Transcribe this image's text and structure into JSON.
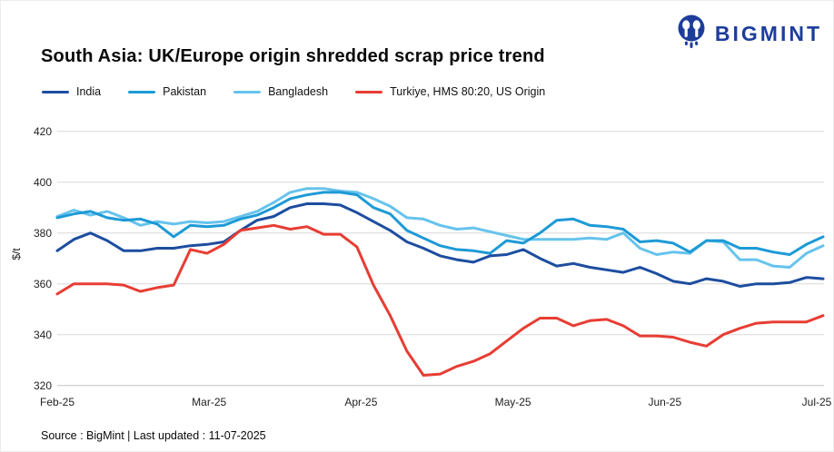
{
  "header": {
    "logo_text": "BIGMINT"
  },
  "footer": {
    "source_line": "Source : BigMint | Last updated : 11-07-2025"
  },
  "colors": {
    "brand_navy": "#1e3d9b",
    "grid": "#d9d9d9",
    "axis_baseline": "#c2c2c2",
    "text": "#111111"
  },
  "chart_data": {
    "type": "line",
    "title": "South Asia: UK/Europe origin shredded scrap price trend",
    "ylabel": "$/t",
    "ylim": [
      320,
      430
    ],
    "yticks": [
      320,
      340,
      360,
      380,
      400,
      420
    ],
    "xticklabels": [
      "Feb-25",
      "Mar-25",
      "Apr-25",
      "May-25",
      "Jun-25",
      "Jul-25"
    ],
    "grid": true,
    "legend_position": "top",
    "x_months": [
      0,
      0.11,
      0.219,
      0.329,
      0.438,
      0.548,
      0.658,
      0.767,
      0.877,
      0.986,
      1.096,
      1.206,
      1.315,
      1.425,
      1.534,
      1.644,
      1.754,
      1.863,
      1.973,
      2.082,
      2.192,
      2.302,
      2.411,
      2.521,
      2.63,
      2.74,
      2.85,
      2.959,
      3.069,
      3.178,
      3.288,
      3.398,
      3.507,
      3.617,
      3.726,
      3.836,
      3.946,
      4.055,
      4.165,
      4.274,
      4.384,
      4.494,
      4.603,
      4.713,
      4.822,
      4.932,
      5.042
    ],
    "series": [
      {
        "name": "India",
        "color": "#1d4d9f",
        "values": [
          373,
          377.5,
          380,
          377,
          373,
          373,
          374,
          374,
          375,
          375.5,
          376.5,
          381,
          385,
          386.5,
          390,
          391.5,
          391.5,
          391,
          388,
          384.5,
          381,
          376.5,
          374,
          371,
          369.5,
          368.5,
          371,
          371.5,
          373.5,
          370,
          367,
          368,
          366.5,
          365.5,
          364.5,
          366.5,
          364,
          361,
          360,
          362,
          361,
          359,
          360,
          360,
          360.5,
          362.5,
          362
        ]
      },
      {
        "name": "Pakistan",
        "color": "#1d9ad6",
        "values": [
          386,
          387.5,
          388.5,
          386,
          385,
          385.5,
          383.5,
          378.5,
          383,
          382.5,
          383,
          385.5,
          387,
          390,
          393.5,
          395,
          396,
          396,
          395,
          390,
          387.5,
          381,
          378,
          375,
          373.5,
          373,
          372,
          377,
          376,
          380,
          385,
          385.5,
          383,
          382.5,
          381.5,
          376.5,
          377,
          376,
          372.5,
          377,
          377,
          374,
          374,
          372.5,
          371.5,
          375.5,
          378.5
        ]
      },
      {
        "name": "Bangladesh",
        "color": "#66c3ec",
        "values": [
          386.5,
          389,
          387,
          388.5,
          386,
          383,
          384.5,
          383.5,
          384.5,
          384,
          384.5,
          386.5,
          388.5,
          392,
          396,
          397.5,
          397.5,
          396.5,
          396,
          393.5,
          390.5,
          386,
          385.5,
          383,
          381.5,
          382,
          380.5,
          379,
          377.5,
          377.5,
          377.5,
          377.5,
          378,
          377.5,
          380,
          374,
          371.5,
          372.5,
          372,
          377,
          376.5,
          369.5,
          369.5,
          367,
          366.5,
          372,
          375
        ]
      },
      {
        "name": "Turkiye, HMS 80:20, US Origin",
        "color": "#e73d33",
        "values": [
          356,
          360,
          360,
          360,
          359.5,
          357,
          358.5,
          359.5,
          373.5,
          372,
          375.5,
          381,
          382,
          383,
          381.5,
          382.5,
          379.5,
          379.5,
          374.5,
          359.5,
          347.5,
          333.5,
          324,
          324.5,
          327.5,
          329.5,
          332.5,
          337.5,
          342.5,
          346.5,
          346.5,
          343.5,
          345.5,
          346,
          343.5,
          339.5,
          339.5,
          339,
          337,
          335.5,
          340,
          342.5,
          344.5,
          345,
          345,
          345,
          347.5
        ]
      }
    ]
  }
}
